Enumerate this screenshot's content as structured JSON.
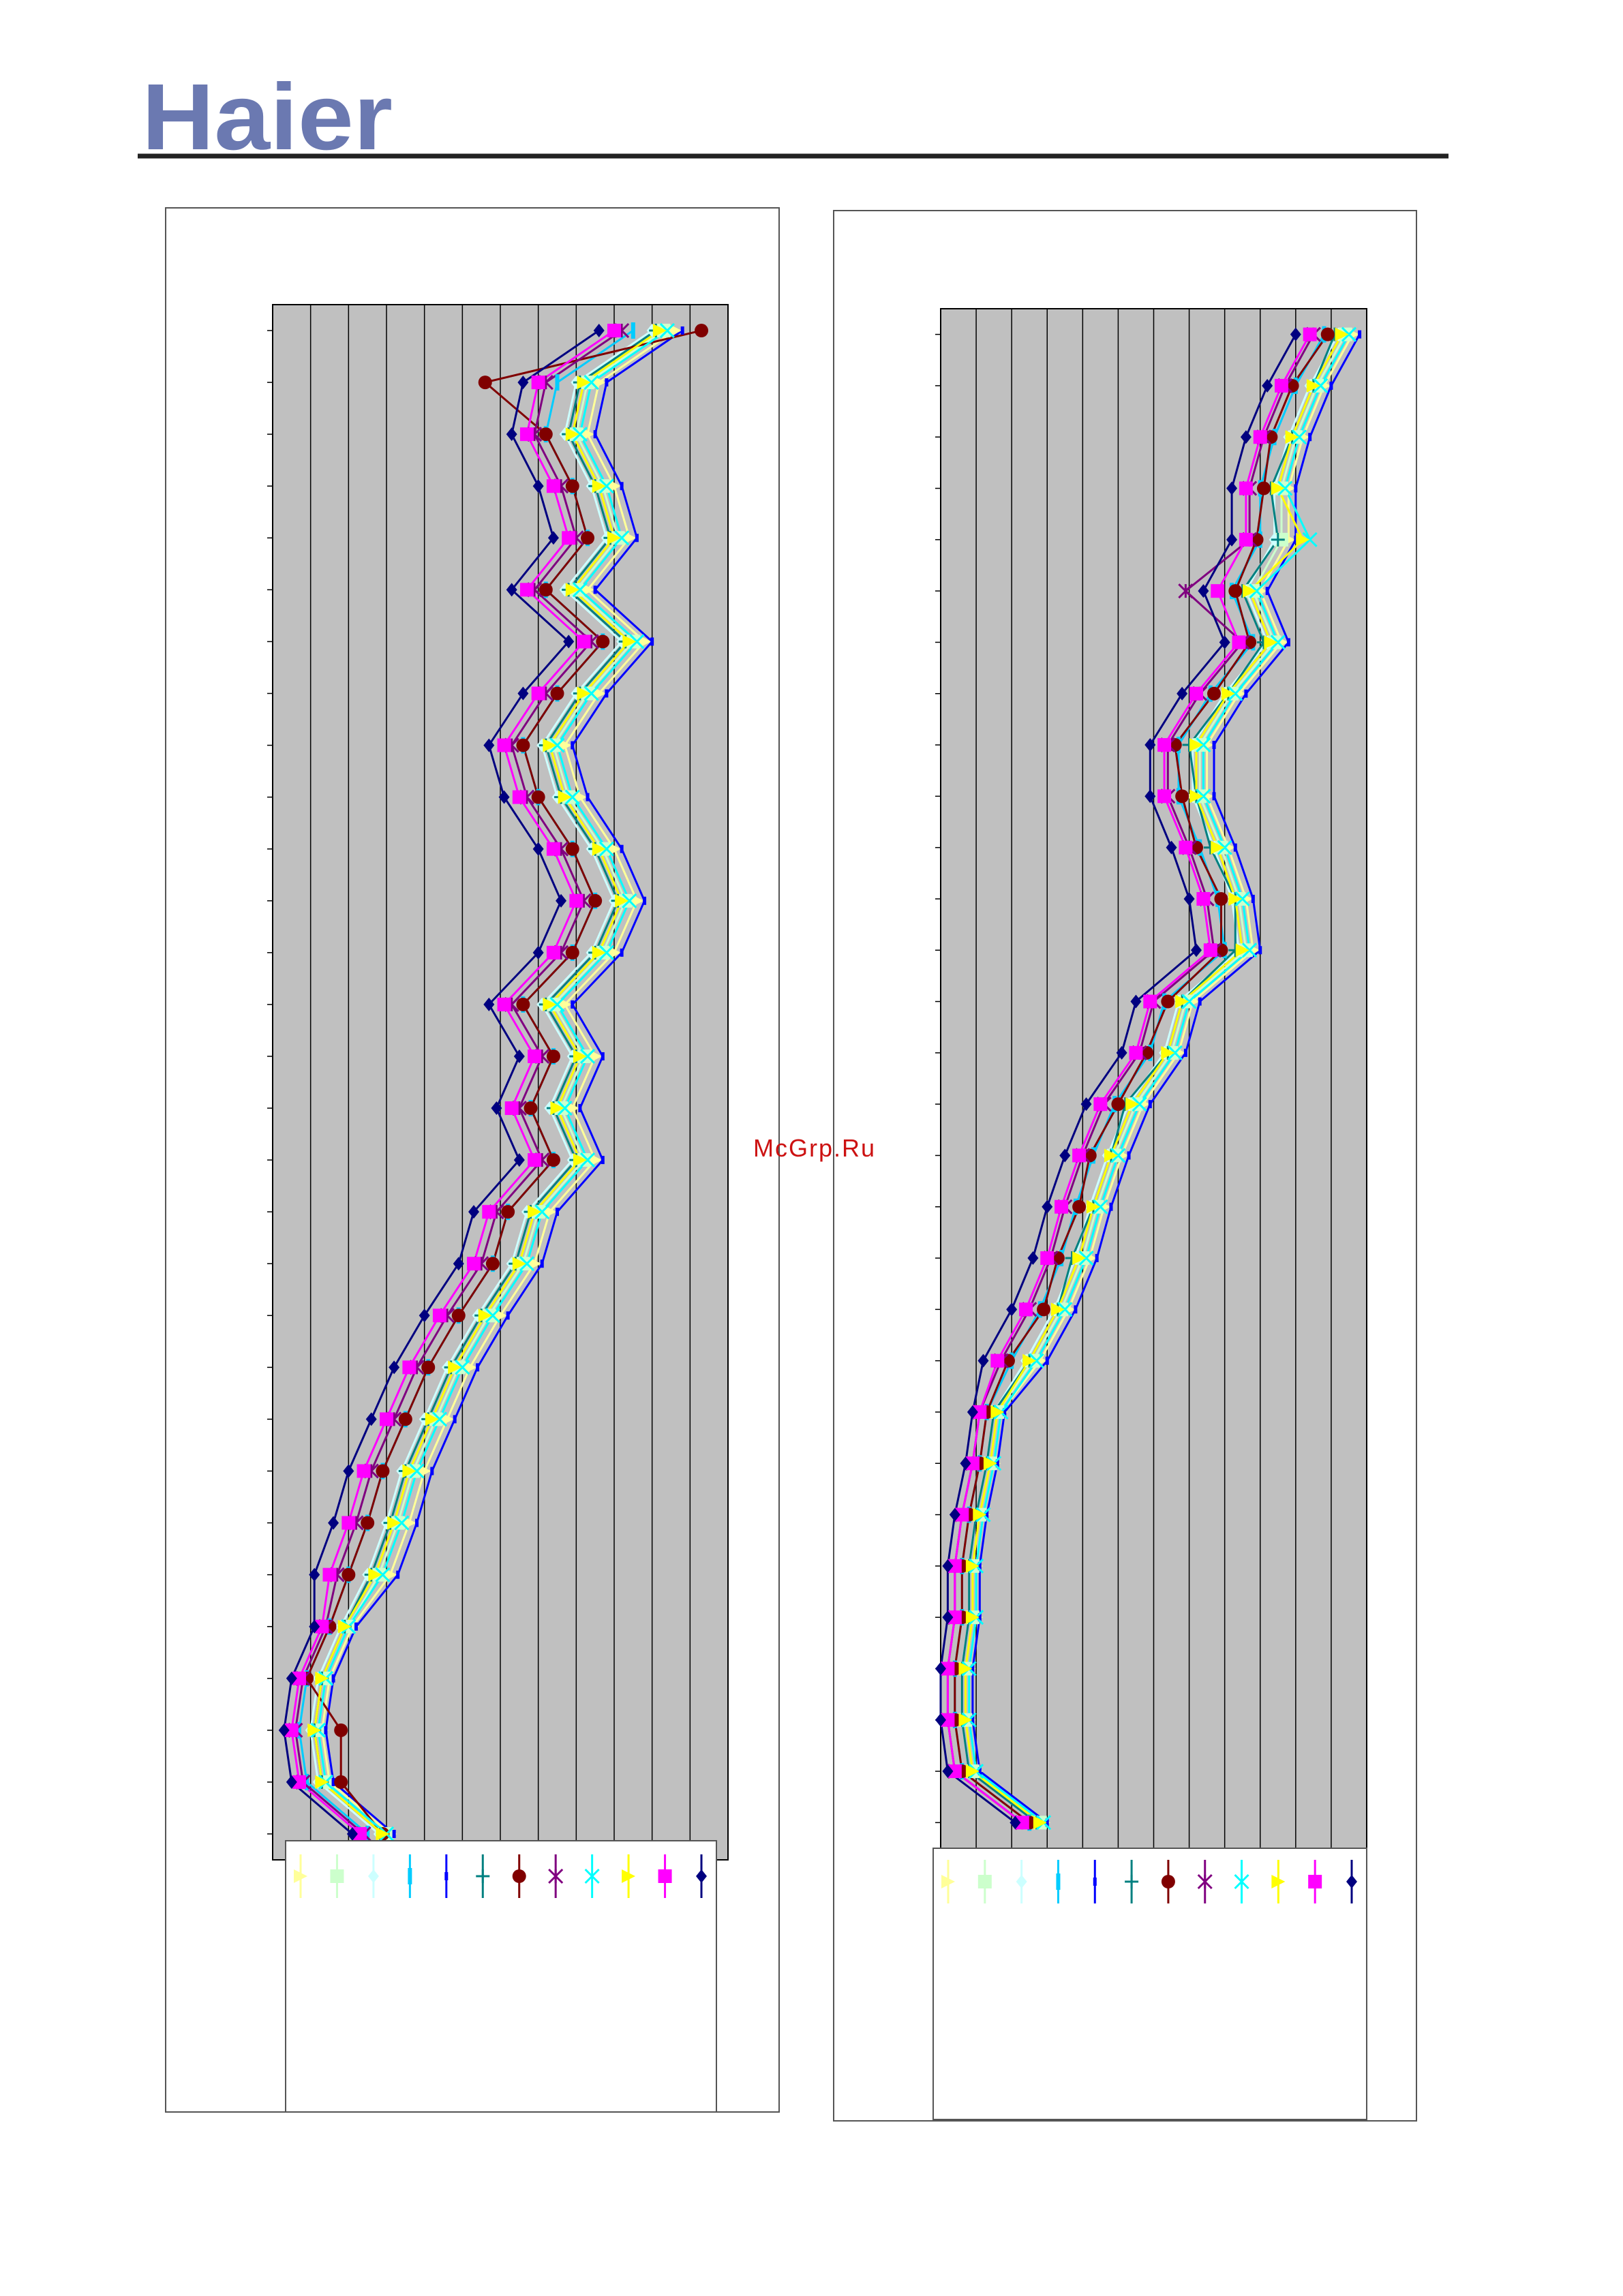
{
  "header": {
    "logo": "Haier"
  },
  "watermark": "McGrp.Ru",
  "chart_data": [
    {
      "type": "line",
      "orientation": "horizontal",
      "grid": true,
      "background": "#c0c0c0",
      "xlim": [
        0,
        12
      ],
      "xticks": [
        0,
        1,
        2,
        3,
        4,
        5,
        6,
        7,
        8,
        9,
        10,
        11,
        12
      ],
      "categories": [
        null,
        null,
        null,
        null,
        null,
        null,
        null,
        null,
        null,
        null,
        null,
        null,
        null,
        null,
        null,
        null,
        null,
        null,
        null,
        null,
        null,
        null,
        null,
        null,
        null,
        null,
        null,
        null,
        null,
        null
      ],
      "series": [
        {
          "color": "#ffff99",
          "marker": "triangle",
          "values": [
            10.6,
            8.6,
            8.3,
            9.0,
            9.4,
            8.3,
            9.8,
            8.6,
            7.7,
            8.1,
            9.0,
            9.6,
            9.0,
            7.7,
            8.5,
            7.9,
            8.5,
            7.3,
            6.9,
            6.0,
            5.2,
            4.6,
            4.0,
            3.6,
            3.1,
            2.1,
            1.5,
            1.3,
            1.5,
            3.1
          ]
        },
        {
          "color": "#ccffcc",
          "marker": "square",
          "values": [
            10.3,
            8.3,
            8.0,
            8.7,
            9.1,
            8.0,
            9.5,
            8.3,
            7.4,
            7.8,
            8.7,
            9.3,
            8.7,
            7.4,
            8.2,
            7.6,
            8.2,
            7.0,
            6.6,
            5.7,
            4.9,
            4.3,
            3.7,
            3.3,
            2.8,
            2.0,
            1.4,
            1.2,
            1.4,
            3.0
          ]
        },
        {
          "color": "#ccffff",
          "marker": "diamond",
          "values": [
            10.0,
            8.0,
            7.7,
            8.4,
            8.8,
            7.7,
            9.2,
            8.0,
            7.1,
            7.5,
            8.4,
            9.0,
            8.4,
            7.1,
            7.9,
            7.3,
            7.9,
            6.7,
            6.3,
            5.4,
            4.6,
            4.0,
            3.4,
            3.0,
            2.5,
            1.8,
            1.2,
            1.0,
            1.2,
            2.8
          ]
        },
        {
          "color": "#00ccff",
          "marker": "bar",
          "values": [
            9.5,
            7.5,
            7.2,
            7.9,
            8.3,
            7.2,
            8.7,
            7.5,
            6.6,
            7.0,
            7.9,
            8.5,
            7.9,
            6.6,
            7.4,
            6.8,
            7.4,
            6.2,
            5.8,
            4.9,
            4.1,
            3.5,
            2.9,
            2.5,
            2.0,
            1.5,
            0.9,
            0.7,
            0.9,
            2.5
          ]
        },
        {
          "color": "#0000ff",
          "marker": "dash",
          "values": [
            10.8,
            8.8,
            8.5,
            9.2,
            9.6,
            8.5,
            10.0,
            8.8,
            7.9,
            8.3,
            9.2,
            9.8,
            9.2,
            7.9,
            8.7,
            8.1,
            8.7,
            7.5,
            7.1,
            6.2,
            5.4,
            4.8,
            4.2,
            3.8,
            3.3,
            2.2,
            1.6,
            1.4,
            1.6,
            3.2
          ]
        },
        {
          "color": "#008080",
          "marker": "plus",
          "values": [
            10.1,
            8.1,
            7.8,
            8.5,
            8.9,
            7.8,
            9.3,
            8.1,
            7.2,
            7.6,
            8.5,
            9.1,
            8.5,
            7.2,
            8.0,
            7.4,
            8.0,
            6.8,
            6.4,
            5.5,
            4.7,
            4.1,
            3.5,
            3.1,
            2.6,
            1.9,
            1.3,
            1.1,
            1.3,
            2.9
          ]
        },
        {
          "color": "#800000",
          "marker": "circle",
          "values": [
            11.3,
            5.6,
            7.2,
            7.9,
            8.3,
            7.2,
            8.7,
            7.5,
            6.6,
            7.0,
            7.9,
            8.5,
            7.9,
            6.6,
            7.4,
            6.8,
            7.4,
            6.2,
            5.8,
            4.9,
            4.1,
            3.5,
            2.9,
            2.5,
            2.0,
            1.5,
            0.9,
            1.8,
            1.8,
            2.9
          ]
        },
        {
          "color": "#800080",
          "marker": "asterisk",
          "values": [
            9.2,
            7.2,
            6.9,
            7.6,
            8.0,
            6.9,
            8.4,
            7.2,
            6.3,
            6.7,
            7.6,
            8.2,
            7.6,
            6.3,
            7.1,
            6.5,
            7.1,
            5.9,
            5.5,
            4.6,
            3.8,
            3.2,
            2.6,
            2.2,
            1.7,
            1.4,
            0.8,
            0.6,
            0.8,
            2.4
          ]
        },
        {
          "color": "#00ffff",
          "marker": "x",
          "values": [
            10.4,
            8.4,
            8.1,
            8.8,
            9.2,
            8.1,
            9.6,
            8.4,
            7.5,
            7.9,
            8.8,
            9.4,
            8.8,
            7.5,
            8.3,
            7.7,
            8.3,
            7.1,
            6.7,
            5.8,
            5.0,
            4.4,
            3.8,
            3.4,
            2.9,
            2.0,
            1.4,
            1.2,
            1.4,
            3.0
          ]
        },
        {
          "color": "#ffff00",
          "marker": "triangle",
          "values": [
            10.2,
            8.2,
            7.9,
            8.6,
            9.0,
            7.9,
            9.4,
            8.2,
            7.3,
            7.7,
            8.6,
            9.2,
            8.6,
            7.3,
            8.1,
            7.5,
            8.1,
            6.9,
            6.5,
            5.6,
            4.8,
            4.2,
            3.6,
            3.2,
            2.7,
            1.9,
            1.3,
            1.1,
            1.3,
            2.9
          ]
        },
        {
          "color": "#ff00ff",
          "marker": "square",
          "values": [
            9.0,
            7.0,
            6.7,
            7.4,
            7.8,
            6.7,
            8.2,
            7.0,
            6.1,
            6.5,
            7.4,
            8.0,
            7.4,
            6.1,
            6.9,
            6.3,
            6.9,
            5.7,
            5.3,
            4.4,
            3.6,
            3.0,
            2.4,
            2.0,
            1.5,
            1.3,
            0.7,
            0.5,
            0.7,
            2.3
          ]
        },
        {
          "color": "#000080",
          "marker": "diamond",
          "values": [
            8.6,
            6.6,
            6.3,
            7.0,
            7.4,
            6.3,
            7.8,
            6.6,
            5.7,
            6.1,
            7.0,
            7.6,
            7.0,
            5.7,
            6.5,
            5.9,
            6.5,
            5.3,
            4.9,
            4.0,
            3.2,
            2.6,
            2.0,
            1.6,
            1.1,
            1.1,
            0.5,
            0.3,
            0.5,
            2.1
          ]
        }
      ]
    },
    {
      "type": "line",
      "orientation": "horizontal",
      "grid": true,
      "background": "#c0c0c0",
      "xlim": [
        0,
        12
      ],
      "xticks": [
        0,
        1,
        2,
        3,
        4,
        5,
        6,
        7,
        8,
        9,
        10,
        11,
        12
      ],
      "categories": [
        null,
        null,
        null,
        null,
        null,
        null,
        null,
        null,
        null,
        null,
        null,
        null,
        null,
        null,
        null,
        null,
        null,
        null,
        null,
        null,
        null,
        null,
        null,
        null,
        null,
        null,
        null,
        null,
        null,
        null
      ],
      "series": [
        {
          "color": "#ffff99",
          "marker": "triangle",
          "values": [
            11.6,
            10.8,
            10.2,
            9.8,
            9.8,
            9.0,
            9.6,
            8.4,
            7.5,
            7.5,
            8.1,
            8.6,
            8.8,
            7.1,
            6.7,
            5.7,
            5.1,
            4.6,
            4.2,
            3.6,
            2.8,
            1.7,
            1.5,
            1.2,
            1.0,
            1.0,
            0.8,
            0.8,
            1.0,
            2.9
          ]
        },
        {
          "color": "#ccffcc",
          "marker": "square",
          "values": [
            11.4,
            10.6,
            10.0,
            9.6,
            9.6,
            8.8,
            9.4,
            8.2,
            7.3,
            7.3,
            7.9,
            8.4,
            8.6,
            6.9,
            6.5,
            5.5,
            4.9,
            4.4,
            4.0,
            3.4,
            2.6,
            1.6,
            1.4,
            1.1,
            0.9,
            0.9,
            0.7,
            0.7,
            0.9,
            2.8
          ]
        },
        {
          "color": "#ccffff",
          "marker": "diamond",
          "values": [
            11.2,
            10.4,
            9.8,
            9.4,
            9.4,
            8.6,
            9.2,
            8.0,
            7.1,
            7.1,
            7.7,
            8.2,
            8.4,
            6.7,
            6.3,
            5.3,
            4.7,
            4.2,
            3.8,
            3.2,
            2.4,
            1.5,
            1.3,
            1.0,
            0.8,
            0.8,
            0.6,
            0.6,
            0.8,
            2.7
          ]
        },
        {
          "color": "#00ccff",
          "marker": "bar",
          "values": [
            10.8,
            10.0,
            9.4,
            9.0,
            9.0,
            8.2,
            8.8,
            7.6,
            6.7,
            6.7,
            7.3,
            7.8,
            8.0,
            6.3,
            5.9,
            4.9,
            4.3,
            3.8,
            3.4,
            2.8,
            2.0,
            1.3,
            1.1,
            0.8,
            0.6,
            0.6,
            0.4,
            0.4,
            0.6,
            2.5
          ]
        },
        {
          "color": "#0000ff",
          "marker": "dash",
          "values": [
            11.8,
            11.0,
            10.4,
            10.0,
            10.0,
            9.2,
            9.8,
            8.6,
            7.7,
            7.7,
            8.3,
            8.8,
            9.0,
            7.3,
            6.9,
            5.9,
            5.3,
            4.8,
            4.4,
            3.8,
            3.0,
            1.8,
            1.6,
            1.3,
            1.1,
            1.1,
            0.9,
            0.9,
            1.1,
            3.0
          ]
        },
        {
          "color": "#008080",
          "marker": "plus",
          "values": [
            11.1,
            10.5,
            9.9,
            9.3,
            9.5,
            8.5,
            9.1,
            8.1,
            7.0,
            7.2,
            7.6,
            8.3,
            8.3,
            6.8,
            6.4,
            5.2,
            4.8,
            4.3,
            3.7,
            3.3,
            2.5,
            1.5,
            1.3,
            1.0,
            0.8,
            0.8,
            0.6,
            0.6,
            0.8,
            2.7
          ]
        },
        {
          "color": "#800000",
          "marker": "circle",
          "values": [
            10.9,
            9.9,
            9.3,
            9.1,
            8.9,
            8.3,
            8.7,
            7.7,
            6.6,
            6.8,
            7.2,
            7.9,
            7.9,
            6.4,
            5.8,
            5.0,
            4.2,
            3.9,
            3.3,
            2.9,
            1.9,
            1.3,
            1.1,
            0.8,
            0.6,
            0.6,
            0.4,
            0.4,
            0.6,
            2.5
          ]
        },
        {
          "color": "#800080",
          "marker": "asterisk",
          "values": [
            10.5,
            9.7,
            9.1,
            8.7,
            8.7,
            6.9,
            8.5,
            7.3,
            6.4,
            6.4,
            7.0,
            7.5,
            7.7,
            6.0,
            5.6,
            4.6,
            4.0,
            3.5,
            3.1,
            2.5,
            1.7,
            1.1,
            0.9,
            0.6,
            0.4,
            0.4,
            0.2,
            0.2,
            0.4,
            2.3
          ]
        },
        {
          "color": "#00ffff",
          "marker": "x",
          "values": [
            11.5,
            10.7,
            10.1,
            9.7,
            10.4,
            8.9,
            9.5,
            8.3,
            7.4,
            7.4,
            8.0,
            8.5,
            8.7,
            7.0,
            6.6,
            5.6,
            5.0,
            4.5,
            4.1,
            3.5,
            2.7,
            1.7,
            1.5,
            1.2,
            1.0,
            1.0,
            0.8,
            0.8,
            1.0,
            2.9
          ]
        },
        {
          "color": "#ffff00",
          "marker": "triangle",
          "values": [
            11.3,
            10.5,
            9.9,
            9.5,
            10.2,
            8.7,
            9.3,
            8.1,
            7.2,
            7.2,
            7.8,
            8.3,
            8.5,
            6.8,
            6.4,
            5.4,
            4.8,
            4.3,
            3.9,
            3.3,
            2.5,
            1.6,
            1.4,
            1.1,
            0.9,
            0.9,
            0.7,
            0.7,
            0.9,
            2.8
          ]
        },
        {
          "color": "#ff00ff",
          "marker": "square",
          "values": [
            10.4,
            9.6,
            9.0,
            8.6,
            8.6,
            7.8,
            8.4,
            7.2,
            6.3,
            6.3,
            6.9,
            7.4,
            7.6,
            5.9,
            5.5,
            4.5,
            3.9,
            3.4,
            3.0,
            2.4,
            1.6,
            1.1,
            0.9,
            0.6,
            0.4,
            0.4,
            0.2,
            0.2,
            0.4,
            2.3
          ]
        },
        {
          "color": "#000080",
          "marker": "diamond",
          "values": [
            10.0,
            9.2,
            8.6,
            8.2,
            8.2,
            7.4,
            8.0,
            6.8,
            5.9,
            5.9,
            6.5,
            7.0,
            7.2,
            5.5,
            5.1,
            4.1,
            3.5,
            3.0,
            2.6,
            2.0,
            1.2,
            0.9,
            0.7,
            0.4,
            0.2,
            0.2,
            0.0,
            0.0,
            0.2,
            2.1
          ]
        }
      ]
    }
  ]
}
